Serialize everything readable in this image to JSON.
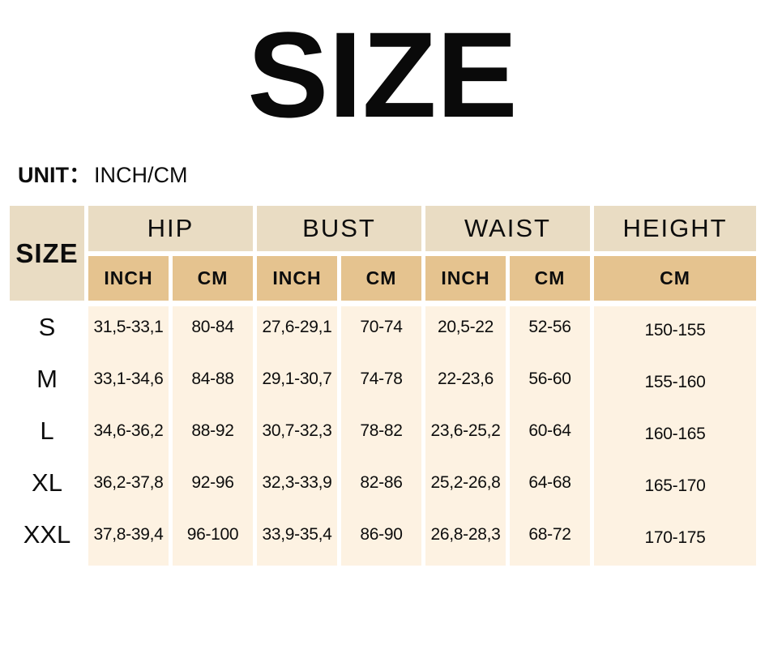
{
  "page": {
    "title": "SIZE",
    "unit_label": "UNIT：",
    "unit_value": "INCH/CM"
  },
  "table": {
    "size_header": "SIZE",
    "groups": [
      {
        "label": "HIP"
      },
      {
        "label": "BUST"
      },
      {
        "label": "WAIST"
      },
      {
        "label": "HEIGHT"
      }
    ],
    "sub_headers": [
      "INCH",
      "CM",
      "INCH",
      "CM",
      "INCH",
      "CM",
      "CM"
    ],
    "rows": [
      {
        "size": "S",
        "cells": [
          "31,5-33,1",
          "80-84",
          "27,6-29,1",
          "70-74",
          "20,5-22",
          "52-56",
          "150-155"
        ]
      },
      {
        "size": "M",
        "cells": [
          "33,1-34,6",
          "84-88",
          "29,1-30,7",
          "74-78",
          "22-23,6",
          "56-60",
          "155-160"
        ]
      },
      {
        "size": "L",
        "cells": [
          "34,6-36,2",
          "88-92",
          "30,7-32,3",
          "78-82",
          "23,6-25,2",
          "60-64",
          "160-165"
        ]
      },
      {
        "size": "XL",
        "cells": [
          "36,2-37,8",
          "92-96",
          "32,3-33,9",
          "82-86",
          "25,2-26,8",
          "64-68",
          "165-170"
        ]
      },
      {
        "size": "XXL",
        "cells": [
          "37,8-39,4",
          "96-100",
          "33,9-35,4",
          "86-90",
          "26,8-28,3",
          "68-72",
          "170-175"
        ]
      }
    ],
    "colors": {
      "header_light": "#e9dcc3",
      "header_tan": "#e5c38f",
      "cell_cream": "#fdf2e2",
      "text": "#0d0d0d",
      "background": "#ffffff"
    }
  }
}
